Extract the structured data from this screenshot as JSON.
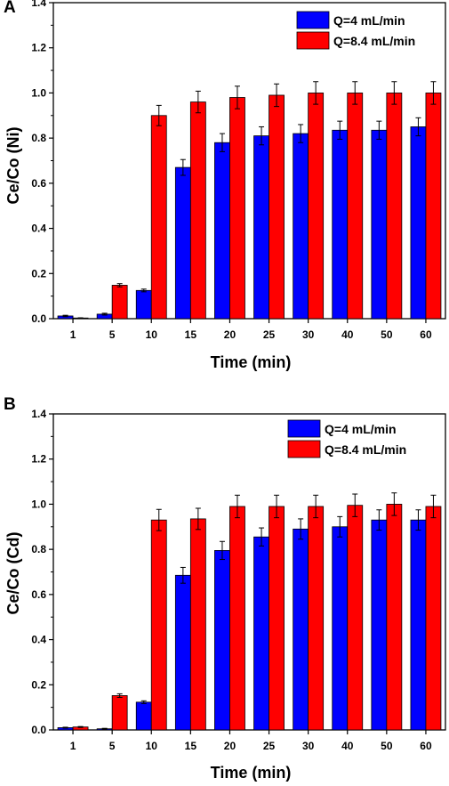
{
  "chart_data": [
    {
      "type": "bar",
      "panel": "A",
      "categories": [
        "1",
        "5",
        "10",
        "15",
        "20",
        "25",
        "30",
        "40",
        "50",
        "60"
      ],
      "series": [
        {
          "name": "Q=4 mL/min",
          "color": "#0000ff",
          "values": [
            0.012,
            0.02,
            0.125,
            0.67,
            0.78,
            0.81,
            0.82,
            0.835,
            0.835,
            0.85
          ],
          "errors": [
            0.003,
            0.004,
            0.006,
            0.035,
            0.04,
            0.04,
            0.04,
            0.04,
            0.04,
            0.04
          ]
        },
        {
          "name": "Q=8.4 mL/min",
          "color": "#ff0000",
          "values": [
            0.003,
            0.148,
            0.9,
            0.96,
            0.98,
            0.99,
            1.0,
            1.0,
            1.0,
            1.0
          ],
          "errors": [
            0.001,
            0.007,
            0.045,
            0.048,
            0.05,
            0.05,
            0.05,
            0.05,
            0.05,
            0.05
          ]
        }
      ],
      "xlabel": "Time (min)",
      "ylabel": "Ce/Co (Ni)",
      "ylim": [
        0,
        1.4
      ],
      "yticks": [
        "0.0",
        "0.2",
        "0.4",
        "0.6",
        "0.8",
        "1.0",
        "1.2",
        "1.4"
      ],
      "grid": false,
      "legend_position": "top-right"
    },
    {
      "type": "bar",
      "panel": "B",
      "categories": [
        "1",
        "5",
        "10",
        "15",
        "20",
        "25",
        "30",
        "40",
        "50",
        "60"
      ],
      "series": [
        {
          "name": "Q=4 mL/min",
          "color": "#0000ff",
          "values": [
            0.01,
            0.005,
            0.123,
            0.685,
            0.795,
            0.855,
            0.89,
            0.9,
            0.93,
            0.93
          ],
          "errors": [
            0.002,
            0.002,
            0.006,
            0.035,
            0.04,
            0.04,
            0.045,
            0.045,
            0.045,
            0.045
          ]
        },
        {
          "name": "Q=8.4 mL/min",
          "color": "#ff0000",
          "values": [
            0.013,
            0.152,
            0.93,
            0.935,
            0.99,
            0.99,
            0.99,
            0.995,
            1.0,
            0.99
          ],
          "errors": [
            0.002,
            0.008,
            0.047,
            0.047,
            0.05,
            0.05,
            0.05,
            0.05,
            0.05,
            0.05
          ]
        }
      ],
      "xlabel": "Time (min)",
      "ylabel": "Ce/Co (Cd)",
      "ylim": [
        0,
        1.4
      ],
      "yticks": [
        "0.0",
        "0.2",
        "0.4",
        "0.6",
        "0.8",
        "1.0",
        "1.2",
        "1.4"
      ],
      "grid": false,
      "legend_position": "top-right"
    }
  ]
}
